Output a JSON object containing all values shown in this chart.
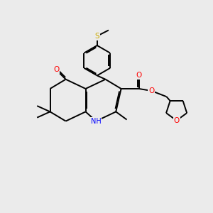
{
  "bg_color": "#ebebeb",
  "bond_color": "#000000",
  "line_width": 1.4,
  "atom_colors": {
    "O": "#ff0000",
    "N": "#0000ff",
    "S": "#ccaa00",
    "C": "#000000"
  },
  "figsize": [
    3.0,
    3.0
  ],
  "dpi": 100
}
